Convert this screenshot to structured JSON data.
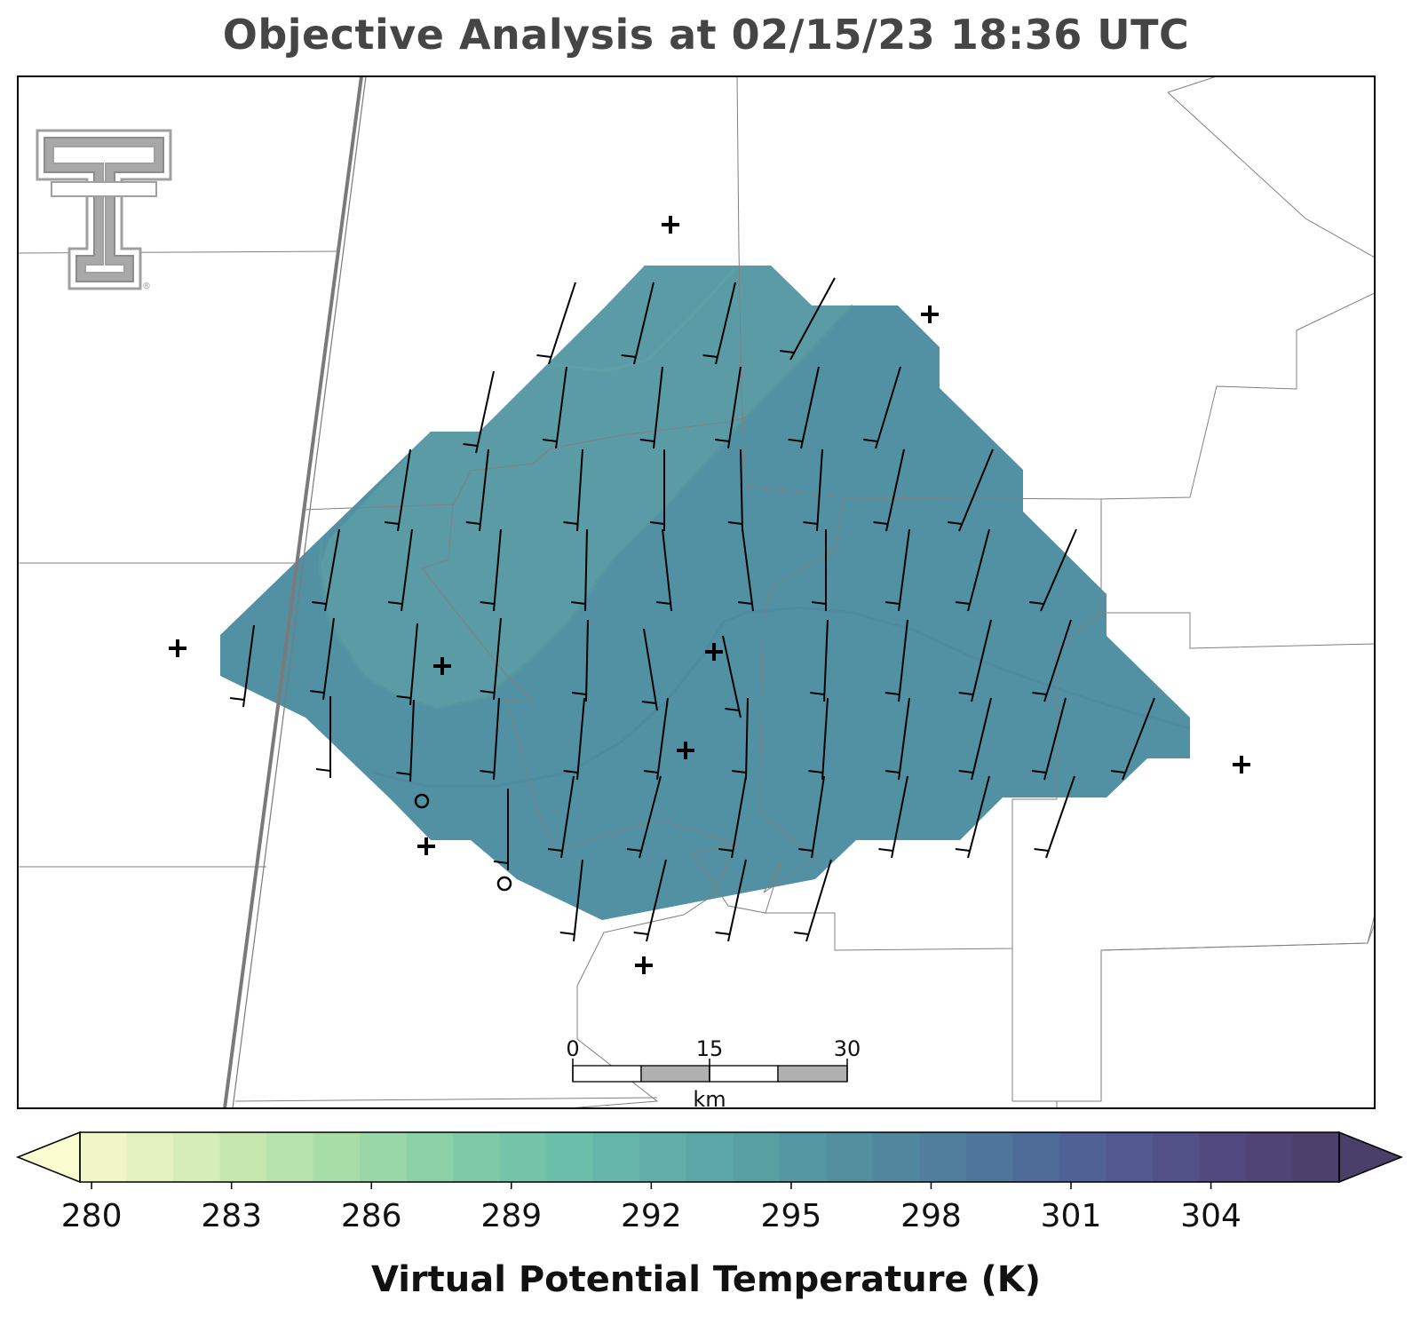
{
  "title": "Objective Analysis at 02/15/23 18:36 UTC",
  "colorbar": {
    "label": "Virtual Potential Temperature (K)",
    "ticks": [
      "280",
      "283",
      "286",
      "289",
      "292",
      "295",
      "298",
      "301",
      "304"
    ],
    "min": 279.75,
    "max": 306.75,
    "step": 1,
    "extend": "both",
    "colormap": "crest (yellow-green to dark purple)"
  },
  "scale_bar": {
    "labels": [
      "0",
      "15",
      "30"
    ],
    "unit": "km"
  },
  "logo": {
    "name": "Texas Tech Double T",
    "mark": "®"
  },
  "colors": {
    "fill_primary": "#5291a3",
    "fill_secondary": "#5b9ba5",
    "boundary": "#808080",
    "barb": "#000000"
  },
  "analysis": {
    "field": "virtual potential temperature",
    "contour_levels_shown": [
      294,
      297
    ],
    "wind_barbs": "northerly to north-northeasterly flow, ~5-10 kt",
    "station_markers": "plus signs (observation sites), circles (calm)"
  }
}
